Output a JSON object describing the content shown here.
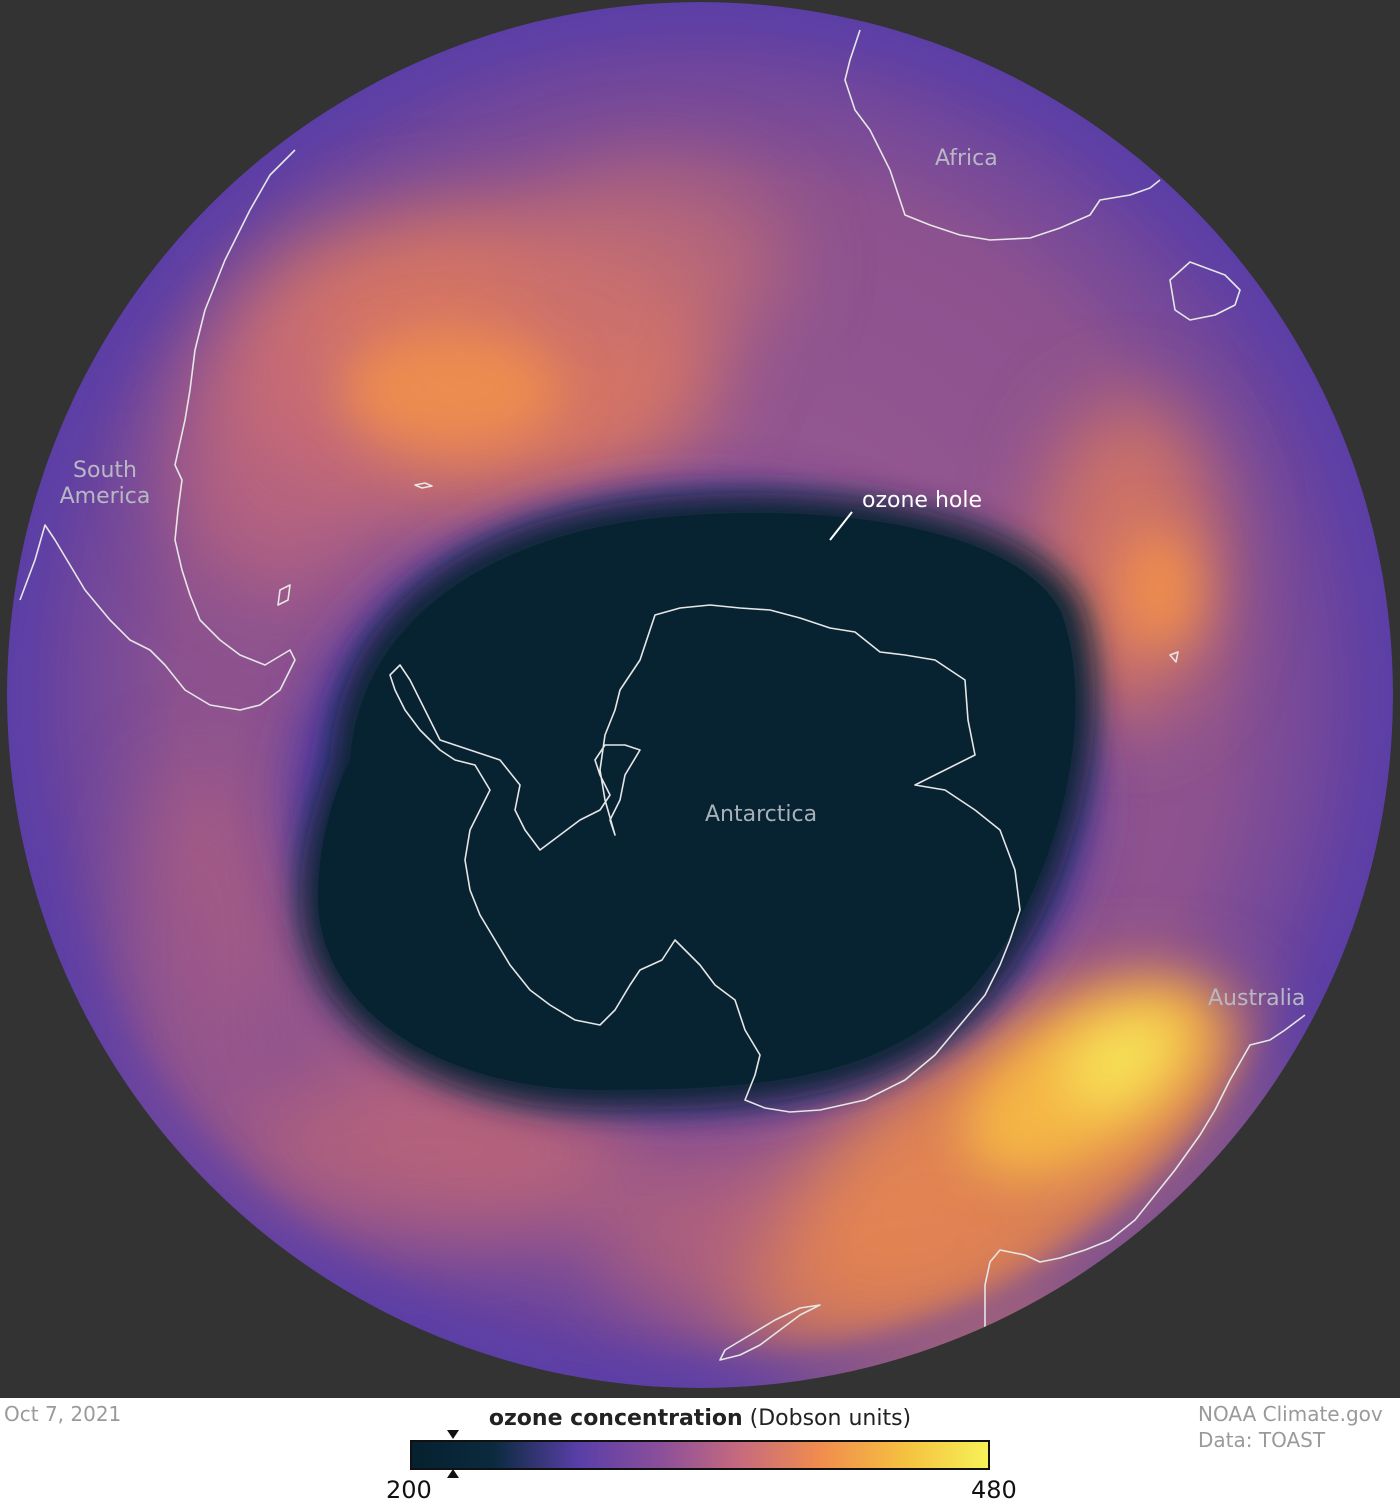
{
  "map": {
    "labels": {
      "africa": "Africa",
      "south_america_line1": "South",
      "south_america_line2": "America",
      "antarctica": "Antarctica",
      "australia": "Australia",
      "ozone_hole": "ozone hole"
    }
  },
  "footer": {
    "date": "Oct 7, 2021",
    "credit_line1": "NOAA Climate.gov",
    "credit_line2": "Data: TOAST"
  },
  "legend": {
    "title_bold": "ozone concentration",
    "title_units": "(Dobson units)",
    "min_label": "200",
    "max_label": "480",
    "min_value": 200,
    "max_value": 480,
    "current_min_marker": 220,
    "colors": [
      "#06212f",
      "#0a2a3d",
      "#5a3fa8",
      "#8a4f9a",
      "#c76a7e",
      "#f08d4e",
      "#f5c240",
      "#f7f158"
    ]
  },
  "colors": {
    "background": "#333333",
    "ozone_hole": "#082535",
    "coastline": "#e6e6e6"
  }
}
